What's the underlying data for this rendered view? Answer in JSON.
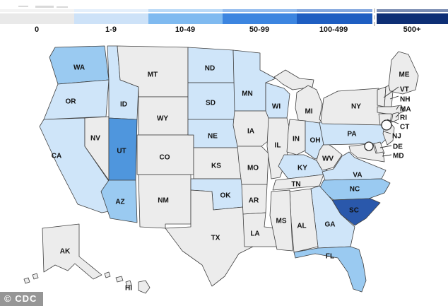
{
  "legend": {
    "categories": [
      {
        "label": "0",
        "legend_color": "#e9e9e9",
        "map_color": "#ececec"
      },
      {
        "label": "1-9",
        "legend_color": "#cde2f8",
        "map_color": "#cfe5f9"
      },
      {
        "label": "10-49",
        "legend_color": "#7fbaf0",
        "map_color": "#9acaf1"
      },
      {
        "label": "50-99",
        "legend_color": "#3c85e0",
        "map_color": "#4f96dd"
      },
      {
        "label": "100-499",
        "legend_color": "#1e5ec2",
        "map_color": "#2a58ab"
      },
      {
        "label": "500+",
        "legend_color": "#0e2f75",
        "map_color": "#0f2f74"
      }
    ]
  },
  "map": {
    "states": {
      "WA": {
        "label": "WA",
        "category": "10-49"
      },
      "OR": {
        "label": "OR",
        "category": "1-9"
      },
      "CA": {
        "label": "CA",
        "category": "1-9"
      },
      "NV": {
        "label": "NV",
        "category": "0"
      },
      "ID": {
        "label": "ID",
        "category": "1-9"
      },
      "UT": {
        "label": "UT",
        "category": "50-99"
      },
      "AZ": {
        "label": "AZ",
        "category": "10-49"
      },
      "MT": {
        "label": "MT",
        "category": "0"
      },
      "WY": {
        "label": "WY",
        "category": "0"
      },
      "CO": {
        "label": "CO",
        "category": "0"
      },
      "NM": {
        "label": "NM",
        "category": "0"
      },
      "ND": {
        "label": "ND",
        "category": "1-9"
      },
      "SD": {
        "label": "SD",
        "category": "1-9"
      },
      "NE": {
        "label": "NE",
        "category": "1-9"
      },
      "KS": {
        "label": "KS",
        "category": "0"
      },
      "OK": {
        "label": "OK",
        "category": "1-9"
      },
      "TX": {
        "label": "TX",
        "category": "0"
      },
      "MN": {
        "label": "MN",
        "category": "1-9"
      },
      "IA": {
        "label": "IA",
        "category": "0"
      },
      "MO": {
        "label": "MO",
        "category": "0"
      },
      "AR": {
        "label": "AR",
        "category": "0"
      },
      "LA": {
        "label": "LA",
        "category": "0"
      },
      "WI": {
        "label": "WI",
        "category": "1-9"
      },
      "IL": {
        "label": "IL",
        "category": "0"
      },
      "MI": {
        "label": "MI",
        "category": "0"
      },
      "IN": {
        "label": "IN",
        "category": "0"
      },
      "OH": {
        "label": "OH",
        "category": "1-9"
      },
      "KY": {
        "label": "KY",
        "category": "1-9"
      },
      "TN": {
        "label": "TN",
        "category": "0"
      },
      "WV": {
        "label": "WV",
        "category": "0"
      },
      "VA": {
        "label": "VA",
        "category": "1-9"
      },
      "NC": {
        "label": "NC",
        "category": "10-49"
      },
      "SC": {
        "label": "SC",
        "category": "100-499"
      },
      "GA": {
        "label": "GA",
        "category": "1-9"
      },
      "AL": {
        "label": "AL",
        "category": "0"
      },
      "MS": {
        "label": "MS",
        "category": "0"
      },
      "FL": {
        "label": "FL",
        "category": "10-49"
      },
      "PA": {
        "label": "PA",
        "category": "1-9"
      },
      "NY": {
        "label": "NY",
        "category": "0"
      },
      "ME": {
        "label": "ME",
        "category": "0"
      },
      "VT": {
        "label": "VT",
        "category": "0"
      },
      "NH": {
        "label": "NH",
        "category": "0"
      },
      "MA": {
        "label": "MA",
        "category": "0"
      },
      "RI": {
        "label": "RI",
        "category": "0"
      },
      "CT": {
        "label": "CT",
        "category": "0"
      },
      "NJ": {
        "label": "NJ",
        "category": "0"
      },
      "DE": {
        "label": "DE",
        "category": "0"
      },
      "MD": {
        "label": "MD",
        "category": "0"
      },
      "AK": {
        "label": "AK",
        "category": "0"
      },
      "HI": {
        "label": "HI",
        "category": "0"
      }
    },
    "markers": [
      {
        "name": "nyc-city-marker",
        "fill": "#fdfdfd"
      },
      {
        "name": "dc-city-marker",
        "fill": "#fdfdfd"
      }
    ]
  },
  "watermark": {
    "text": "© CDC"
  },
  "chart_data": {
    "type": "heatmap",
    "subtype": "us-state-choropleth",
    "title": "",
    "legend_position": "top",
    "bins": [
      "0",
      "1-9",
      "10-49",
      "50-99",
      "100-499",
      "500+"
    ],
    "bin_colors": [
      "#e9e9e9",
      "#cde2f8",
      "#7fbaf0",
      "#3c85e0",
      "#1e5ec2",
      "#0e2f75"
    ],
    "state_bins": {
      "WA": "10-49",
      "OR": "1-9",
      "CA": "1-9",
      "NV": "0",
      "ID": "1-9",
      "UT": "50-99",
      "AZ": "10-49",
      "MT": "0",
      "WY": "0",
      "CO": "0",
      "NM": "0",
      "ND": "1-9",
      "SD": "1-9",
      "NE": "1-9",
      "KS": "0",
      "OK": "1-9",
      "TX": "0",
      "MN": "1-9",
      "IA": "0",
      "MO": "0",
      "AR": "0",
      "LA": "0",
      "WI": "1-9",
      "IL": "0",
      "MI": "0",
      "IN": "0",
      "OH": "1-9",
      "KY": "1-9",
      "TN": "0",
      "WV": "0",
      "VA": "1-9",
      "NC": "10-49",
      "SC": "100-499",
      "GA": "1-9",
      "AL": "0",
      "MS": "0",
      "FL": "10-49",
      "PA": "1-9",
      "NY": "0",
      "ME": "0",
      "VT": "0",
      "NH": "0",
      "MA": "0",
      "RI": "0",
      "CT": "0",
      "NJ": "0",
      "DE": "0",
      "MD": "0",
      "AK": "0",
      "HI": "0"
    },
    "source_label": "© CDC"
  }
}
